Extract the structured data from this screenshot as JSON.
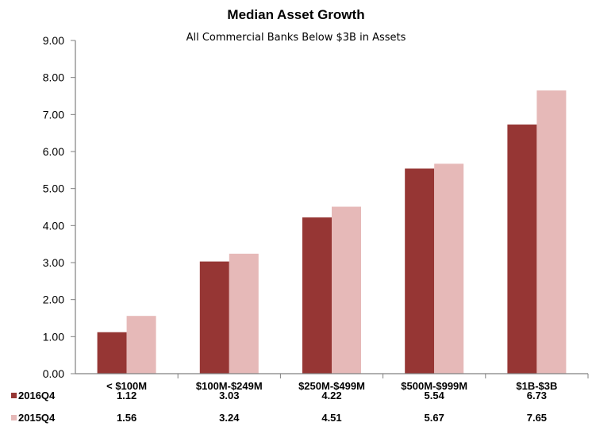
{
  "chart_data": {
    "type": "bar",
    "title": "Median Asset Growth",
    "subtitle": "All Commercial Banks Below $3B in Assets",
    "categories": [
      "< $100M",
      "$100M-$249M",
      "$250M-$499M",
      "$500M-$999M",
      "$1B-$3B"
    ],
    "series": [
      {
        "name": "2016Q4",
        "color": "#963634",
        "values": [
          1.12,
          3.03,
          4.22,
          5.54,
          6.73
        ]
      },
      {
        "name": "2015Q4",
        "color": "#E6B9B8",
        "values": [
          1.56,
          3.24,
          4.51,
          5.67,
          7.65
        ]
      }
    ],
    "data_table": {
      "rows": [
        {
          "label": "2016Q4",
          "values": [
            "1.12",
            "3.03",
            "4.22",
            "5.54",
            "6.73"
          ]
        },
        {
          "label": "2015Q4",
          "values": [
            "1.56",
            "3.24",
            "4.51",
            "5.67",
            "7.65"
          ]
        }
      ]
    },
    "ylim": [
      0,
      9
    ],
    "yticks": [
      "0.00",
      "1.00",
      "2.00",
      "3.00",
      "4.00",
      "5.00",
      "6.00",
      "7.00",
      "8.00",
      "9.00"
    ],
    "xlabel": "",
    "ylabel": "",
    "grid": false,
    "legend": "data table below x-axis"
  }
}
